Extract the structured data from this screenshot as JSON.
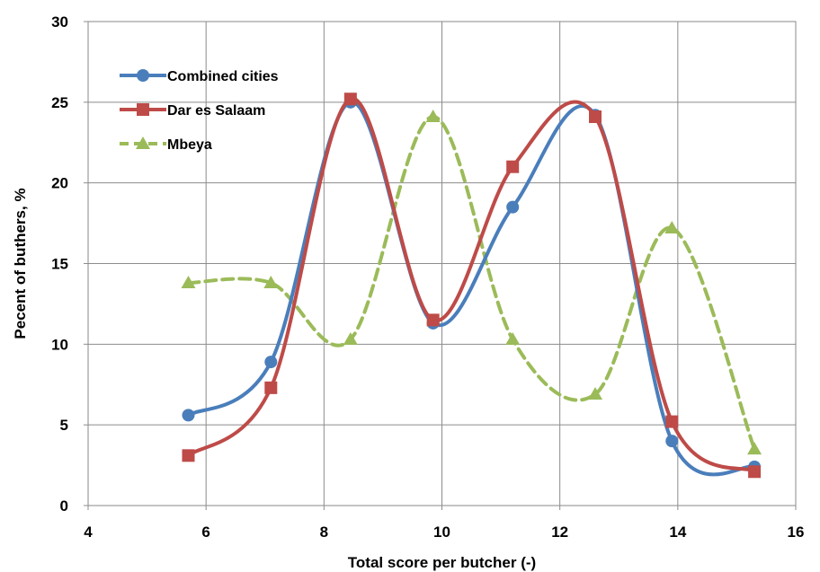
{
  "chart_data": {
    "type": "line",
    "title": "",
    "xlabel": "Total score per butcher (-)",
    "ylabel": "Pecent of buthers, %",
    "xlim": [
      4,
      16
    ],
    "ylim": [
      0,
      30
    ],
    "x_ticks": [
      "4",
      "6",
      "8",
      "10",
      "12",
      "14",
      "16"
    ],
    "y_ticks": [
      "0",
      "5",
      "10",
      "15",
      "20",
      "25",
      "30"
    ],
    "grid": true,
    "legend_position": "top-left",
    "series": [
      {
        "name": "Combined cities",
        "color": "#4a7ebb",
        "marker": "circle",
        "line_style": "solid",
        "x": [
          5.7,
          7.1,
          8.45,
          9.85,
          11.2,
          12.6,
          13.9,
          15.3
        ],
        "y": [
          5.6,
          8.9,
          25.0,
          11.3,
          18.5,
          24.2,
          4.0,
          2.4
        ]
      },
      {
        "name": "Dar es Salaam",
        "color": "#be4b48",
        "marker": "square",
        "line_style": "solid",
        "x": [
          5.7,
          7.1,
          8.45,
          9.85,
          11.2,
          12.6,
          13.9,
          15.3
        ],
        "y": [
          3.1,
          7.3,
          25.2,
          11.5,
          21.0,
          24.1,
          5.2,
          2.1
        ]
      },
      {
        "name": "Mbeya",
        "color": "#9bbb59",
        "marker": "triangle",
        "line_style": "dashed",
        "x": [
          5.7,
          7.1,
          8.45,
          9.85,
          11.2,
          12.6,
          13.9,
          15.3
        ],
        "y": [
          13.8,
          13.8,
          10.3,
          24.1,
          10.3,
          6.9,
          17.2,
          3.5
        ]
      }
    ]
  }
}
